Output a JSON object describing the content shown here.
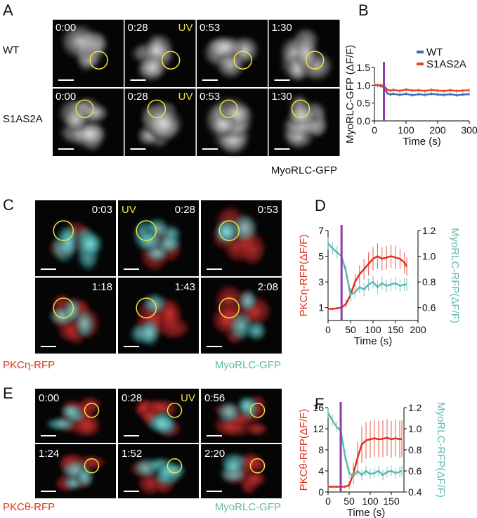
{
  "panel_a": {
    "letter": "A",
    "rows": [
      "WT",
      "S1AS2A"
    ],
    "times": [
      "0:00",
      "0:28",
      "0:53",
      "1:30"
    ],
    "uv": "UV",
    "caption": "MyoRLC-GFP"
  },
  "panel_c": {
    "letter": "C",
    "times": [
      "0:03",
      "0:28",
      "0:53",
      "1:18",
      "1:43",
      "2:08"
    ],
    "uv": "UV",
    "captions": [
      "PKCη-RFP",
      "MyoRLC-GFP"
    ]
  },
  "panel_e": {
    "letter": "E",
    "times": [
      "0:00",
      "0:28",
      "0:56",
      "1:24",
      "1:52",
      "2:20"
    ],
    "uv": "UV",
    "captions": [
      "PKCθ-RFP",
      "MyoRLC-GFP"
    ]
  },
  "chart_data": [
    {
      "type": "line",
      "panel_label": "B",
      "ylabel": "MyoRLC-GFP (ΔF/F)",
      "xlabel": "Time (s)",
      "x": [
        0,
        10,
        20,
        30,
        40,
        50,
        60,
        80,
        100,
        120,
        140,
        160,
        180,
        200,
        220,
        240,
        260,
        280,
        300
      ],
      "xlim": [
        0,
        300
      ],
      "xticks": [
        0,
        100,
        200,
        300
      ],
      "ylim": [
        0,
        1.5
      ],
      "yticks": [
        {
          "value": 0,
          "label": "0.0"
        },
        0.5,
        {
          "value": 1,
          "label": "1.0"
        },
        1.5
      ],
      "vline": 30,
      "vline_color": "#8e3aa8",
      "legend": "upper right",
      "series": [
        {
          "name": "WT",
          "color": "#3d6fb6",
          "values": [
            1.0,
            1.0,
            0.98,
            0.95,
            0.78,
            0.74,
            0.76,
            0.73,
            0.76,
            0.72,
            0.75,
            0.73,
            0.76,
            0.74,
            0.73,
            0.75,
            0.72,
            0.74,
            0.75
          ],
          "errors": [
            0.05,
            0.05,
            0.05,
            0.05,
            0.05,
            0.05,
            0.05,
            0.05,
            0.05,
            0.05,
            0.05,
            0.05,
            0.05,
            0.05,
            0.05,
            0.05,
            0.05,
            0.05,
            0.05
          ]
        },
        {
          "name": "S1AS2A",
          "color": "#e8402a",
          "values": [
            1.02,
            1.0,
            1.0,
            0.98,
            0.88,
            0.85,
            0.87,
            0.84,
            0.88,
            0.85,
            0.86,
            0.84,
            0.87,
            0.85,
            0.84,
            0.86,
            0.84,
            0.85,
            0.86
          ],
          "errors": [
            0.05,
            0.05,
            0.05,
            0.05,
            0.05,
            0.05,
            0.05,
            0.05,
            0.05,
            0.05,
            0.05,
            0.05,
            0.05,
            0.05,
            0.05,
            0.05,
            0.05,
            0.05,
            0.05
          ]
        }
      ]
    },
    {
      "type": "line",
      "panel_label": "D",
      "ylabel": "PKCη-RFP(ΔF/F)",
      "y2label": "MyoRLC-RFP(ΔF/F)",
      "xlabel": "Time (s)",
      "x": [
        0,
        10,
        20,
        30,
        40,
        50,
        60,
        70,
        80,
        90,
        100,
        110,
        120,
        130,
        140,
        150,
        160,
        170,
        175
      ],
      "xlim": [
        0,
        200
      ],
      "xticks": [
        0,
        50,
        100,
        150,
        200
      ],
      "ylim": [
        0,
        7
      ],
      "yticks": [
        1,
        3,
        5,
        7
      ],
      "y2lim": [
        0.5,
        1.2
      ],
      "y2ticks": [
        0.6,
        0.8,
        {
          "value": 1,
          "label": "1.0"
        },
        1.2
      ],
      "vline": 30,
      "vline_color": "#8e3aa8",
      "series": [
        {
          "color": "#e0301e",
          "values": [
            0.9,
            0.9,
            0.95,
            1.0,
            1.3,
            2.0,
            3.0,
            3.6,
            4.0,
            4.4,
            4.8,
            5.0,
            4.8,
            4.9,
            5.0,
            4.9,
            4.8,
            4.5,
            4.2
          ],
          "errors": [
            0.1,
            0.1,
            0.1,
            0.2,
            0.3,
            0.5,
            0.6,
            0.7,
            0.8,
            0.9,
            0.9,
            1.0,
            0.9,
            0.9,
            0.9,
            0.9,
            0.8,
            0.8,
            0.7
          ]
        },
        {
          "color": "#5fb8b0",
          "axis": "y2",
          "values": [
            1.1,
            1.06,
            1.03,
            1.0,
            0.88,
            0.7,
            0.72,
            0.76,
            0.74,
            0.78,
            0.8,
            0.76,
            0.79,
            0.77,
            0.78,
            0.79,
            0.77,
            0.78,
            0.78
          ],
          "errors": [
            0.05,
            0.05,
            0.05,
            0.05,
            0.05,
            0.05,
            0.05,
            0.05,
            0.05,
            0.05,
            0.05,
            0.05,
            0.05,
            0.05,
            0.05,
            0.05,
            0.05,
            0.05,
            0.05
          ]
        }
      ]
    },
    {
      "type": "line",
      "panel_label": "F",
      "ylabel": "PKCθ-RFP(ΔF/F)",
      "y2label": "MyoRLC-RFP(ΔF/F)",
      "xlabel": "Time (s)",
      "x": [
        0,
        10,
        20,
        30,
        40,
        50,
        60,
        70,
        80,
        90,
        100,
        110,
        120,
        130,
        140,
        150,
        160,
        170,
        175
      ],
      "xlim": [
        0,
        180
      ],
      "xticks": [
        0,
        50,
        100,
        150
      ],
      "ylim": [
        0,
        16
      ],
      "yticks": [
        0,
        4,
        8,
        12,
        16
      ],
      "y2lim": [
        0.4,
        1.2
      ],
      "y2ticks": [
        0.4,
        0.6,
        0.8,
        {
          "value": 1,
          "label": "1.0"
        },
        1.2
      ],
      "vline": 30,
      "vline_color": "#8e3aa8",
      "series": [
        {
          "color": "#e0301e",
          "values": [
            1.0,
            1.0,
            1.0,
            1.0,
            1.0,
            1.3,
            3.5,
            6.5,
            9.0,
            9.8,
            10.0,
            10.2,
            10.0,
            10.1,
            10.3,
            10.0,
            10.2,
            10.0,
            10.1
          ],
          "errors": [
            0.2,
            0.2,
            0.2,
            0.2,
            0.3,
            0.8,
            2,
            3,
            3.5,
            3.5,
            3.5,
            3.5,
            3.5,
            3.5,
            3.5,
            3.5,
            3.5,
            3.5,
            3.5
          ]
        },
        {
          "color": "#5fb8b0",
          "axis": "y2",
          "values": [
            1.15,
            1.08,
            1.02,
            0.98,
            0.75,
            0.58,
            0.55,
            0.6,
            0.56,
            0.6,
            0.57,
            0.58,
            0.6,
            0.56,
            0.59,
            0.6,
            0.58,
            0.59,
            0.6
          ],
          "errors": [
            0.05,
            0.05,
            0.05,
            0.05,
            0.05,
            0.05,
            0.05,
            0.05,
            0.05,
            0.05,
            0.05,
            0.05,
            0.05,
            0.05,
            0.05,
            0.05,
            0.05,
            0.05,
            0.05
          ]
        }
      ]
    }
  ]
}
